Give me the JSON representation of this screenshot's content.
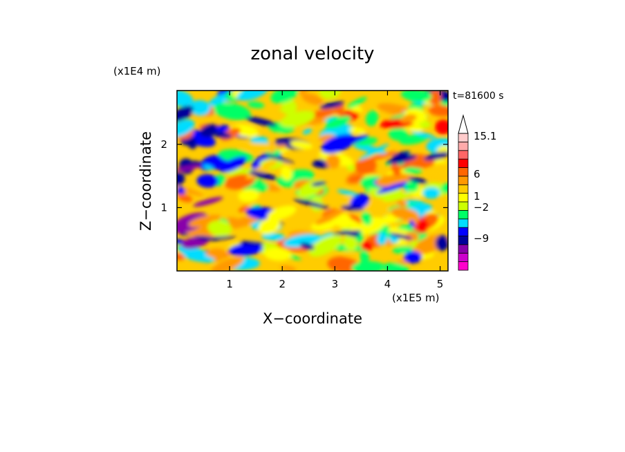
{
  "chart_data": {
    "type": "heatmap",
    "title": "zonal velocity",
    "xlabel": "X−coordinate",
    "ylabel": "Z−coordinate",
    "x_unit": "(x1E5 m)",
    "y_unit": "(x1E4 m)",
    "time_label": "t=81600 s",
    "xlim": [
      0,
      5.15
    ],
    "ylim": [
      0,
      2.85
    ],
    "x_ticks": [
      "1",
      "2",
      "3",
      "4",
      "5"
    ],
    "y_ticks": [
      "1",
      "2"
    ],
    "colorbar": {
      "colors": [
        "#ff00cc",
        "#cc00cc",
        "#8800aa",
        "#00009a",
        "#0000ff",
        "#00ddff",
        "#00ff66",
        "#ccff00",
        "#ffff00",
        "#ffcc00",
        "#ff9900",
        "#ff6600",
        "#ff0000",
        "#ff6666",
        "#ffaaaa",
        "#ffcccc"
      ],
      "labels": [
        "15.1",
        "6",
        "1",
        "−2",
        "−9"
      ]
    }
  }
}
